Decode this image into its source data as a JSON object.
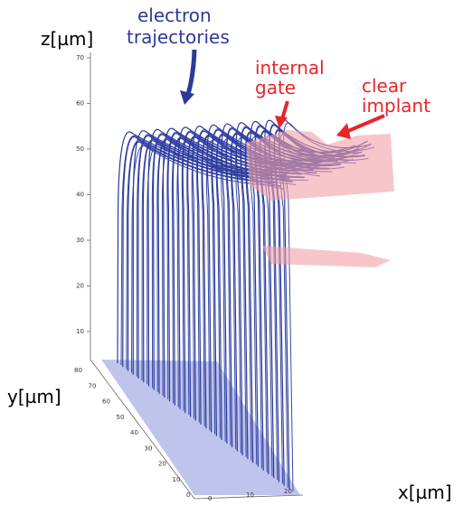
{
  "annotations": {
    "electron_label": [
      "electron",
      "trajectories"
    ],
    "gate_label": [
      "internal",
      "gate"
    ],
    "implant_label": [
      "clear",
      "implant"
    ]
  },
  "axes": {
    "z_label": "z[µm]",
    "z_ticks": [
      "70",
      "60",
      "50",
      "40",
      "30",
      "20",
      "10"
    ],
    "y_label": "y[µm]",
    "y_ticks": [
      "80",
      "70",
      "60",
      "50",
      "40",
      "30",
      "20",
      "10",
      "0"
    ],
    "x_label": "x[µm]",
    "x_ticks": [
      "0",
      "10",
      "20"
    ]
  }
}
